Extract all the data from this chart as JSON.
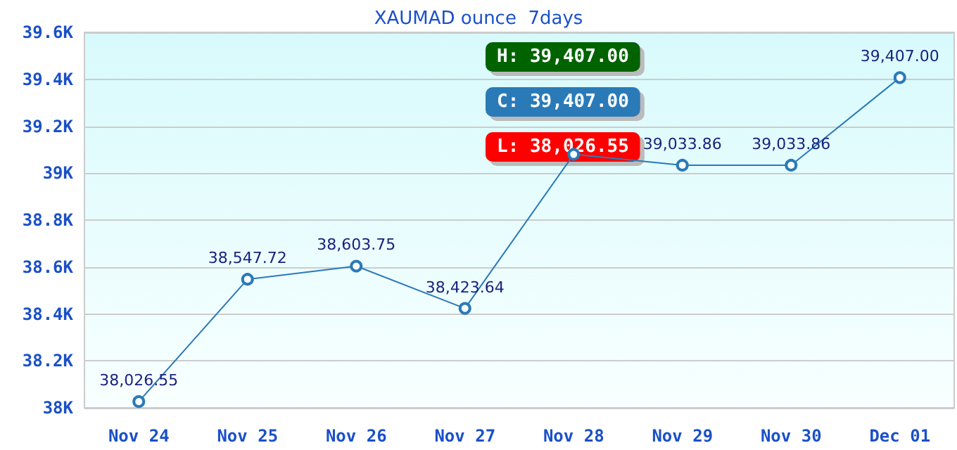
{
  "chart_data": {
    "type": "line",
    "title": "XAUMAD ounce  7days",
    "categories": [
      "Nov 24",
      "Nov 25",
      "Nov 26",
      "Nov 27",
      "Nov 28",
      "Nov 29",
      "Nov 30",
      "Dec 01"
    ],
    "values": [
      38026.55,
      38547.72,
      38603.75,
      38423.64,
      39080,
      39033.86,
      39033.86,
      39407.0
    ],
    "value_labels": [
      "38,026.55",
      "38,547.72",
      "38,603.75",
      "38,423.64",
      null,
      "39,033.86",
      "39,033.86",
      "39,407.00"
    ],
    "color": "#2a7ab8",
    "marker": "circle",
    "grid": "y",
    "ylim": [
      38000,
      39600
    ],
    "yticks": [
      {
        "value": 38000,
        "label": "38K"
      },
      {
        "value": 38200,
        "label": "38.2K"
      },
      {
        "value": 38400,
        "label": "38.4K"
      },
      {
        "value": 38600,
        "label": "38.6K"
      },
      {
        "value": 38800,
        "label": "38.8K"
      },
      {
        "value": 39000,
        "label": "39K"
      },
      {
        "value": 39200,
        "label": "39.2K"
      },
      {
        "value": 39400,
        "label": "39.4K"
      },
      {
        "value": 39600,
        "label": "39.6K"
      }
    ],
    "annotations": [
      "H: 39,407.00",
      "C: 39,407.00",
      "L: 38,026.55"
    ]
  }
}
